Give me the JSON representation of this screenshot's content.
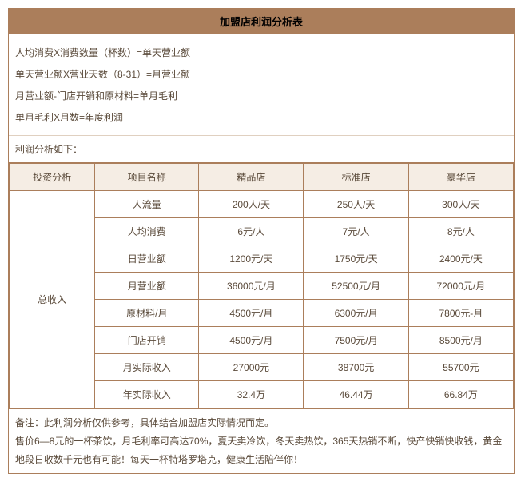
{
  "title": "加盟店利润分析表",
  "formulas": [
    "人均消费X消费数量（杯数）=单天营业额",
    "单天营业额X营业天数（8-31）=月营业额",
    "月营业额-门店开销和原材料=单月毛利",
    "单月毛利X月数=年度利润"
  ],
  "subheading": "利润分析如下：",
  "headers": [
    "投资分析",
    "项目名称",
    "精品店",
    "标准店",
    "豪华店"
  ],
  "group_label": "总收入",
  "rows": [
    {
      "name": "人流量",
      "c1": "200人/天",
      "c2": "250人/天",
      "c3": "300人/天"
    },
    {
      "name": "人均消费",
      "c1": "6元/人",
      "c2": "7元/人",
      "c3": "8元/人"
    },
    {
      "name": "日营业额",
      "c1": "1200元/天",
      "c2": "1750元/天",
      "c3": "2400元/天"
    },
    {
      "name": "月营业额",
      "c1": "36000元/月",
      "c2": "52500元/月",
      "c3": "72000元/月"
    },
    {
      "name": "原材料/月",
      "c1": "4500元/月",
      "c2": "6300元/月",
      "c3": "7800元-月"
    },
    {
      "name": "门店开销",
      "c1": "4500元/月",
      "c2": "7500元/月",
      "c3": "8500元/月"
    },
    {
      "name": "月实际收入",
      "c1": "27000元",
      "c2": "38700元",
      "c3": "55700元"
    },
    {
      "name": "年实际收入",
      "c1": "32.4万",
      "c2": "46.44万",
      "c3": "66.84万"
    }
  ],
  "note1": "备注：此利润分析仅供参考，具体结合加盟店实际情况而定。",
  "note2": "售价6—8元的一杯茶饮，月毛利率可高达70%，夏天卖冷饮，冬天卖热饮，365天热销不断，快产快销快收钱，黄金地段日收数千元也有可能！每天一杯特塔罗塔克，健康生活陪伴你！",
  "colors": {
    "border": "#ab7e5b",
    "header_bg": "#f5ede4",
    "title_bg": "#ab7e5b",
    "text": "#5a4a3a"
  }
}
